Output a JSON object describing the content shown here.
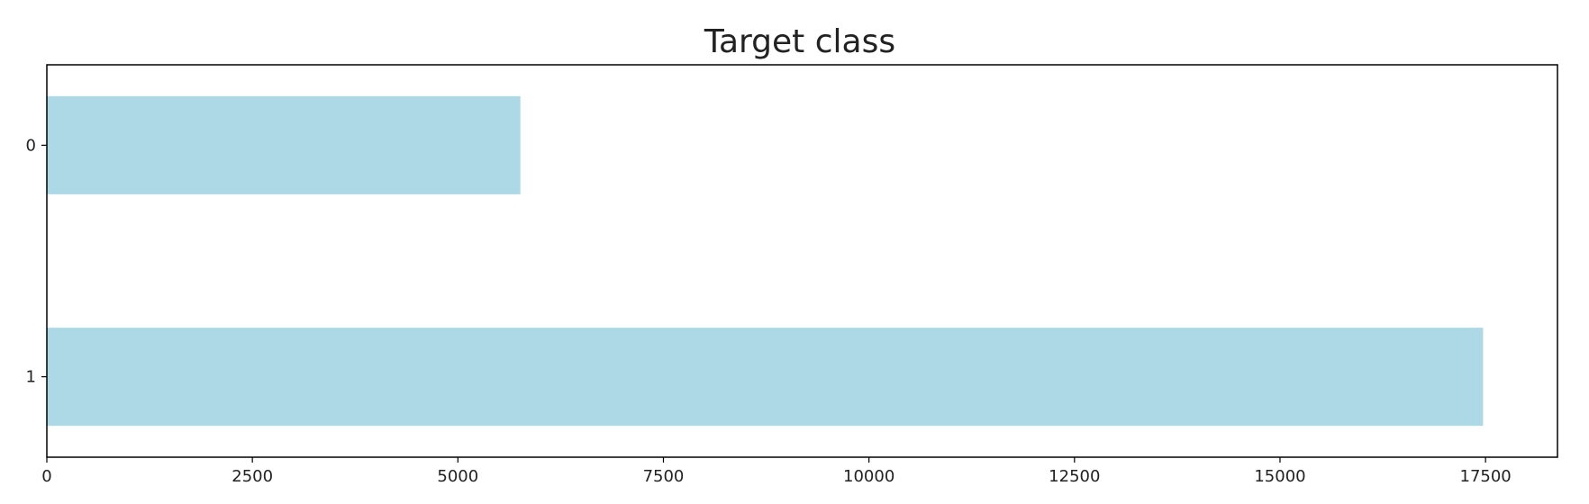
{
  "chart_data": {
    "type": "bar",
    "orientation": "horizontal",
    "title": "Target class",
    "xlabel": "",
    "ylabel": "",
    "categories": [
      "0",
      "1"
    ],
    "values": [
      5760,
      17470
    ],
    "xlim": [
      0,
      18375
    ],
    "x_ticks": [
      0,
      2500,
      5000,
      7500,
      10000,
      12500,
      15000,
      17500
    ],
    "bar_color": "#add8e6",
    "grid": false,
    "legend": "none"
  }
}
